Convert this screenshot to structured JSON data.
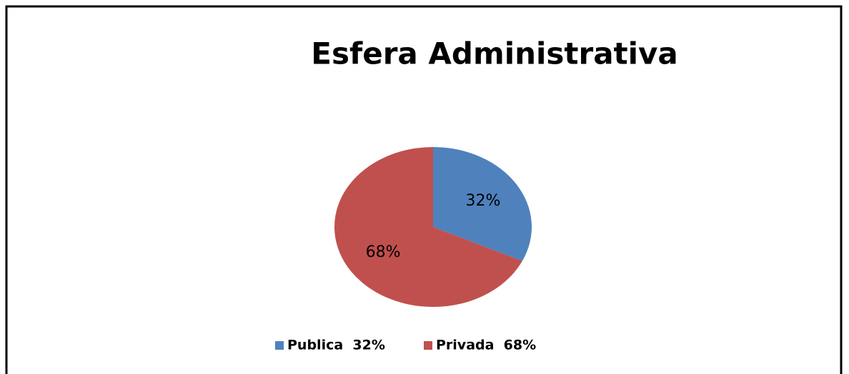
{
  "chart_data": {
    "type": "pie",
    "title": "Esfera Administrativa",
    "categories": [
      "Publica  32%",
      "Privada  68%"
    ],
    "values": [
      32,
      68
    ],
    "value_labels": [
      "32%",
      "68%"
    ],
    "colors": [
      "#4f81bd",
      "#c0504d"
    ],
    "legend": "bottom"
  }
}
